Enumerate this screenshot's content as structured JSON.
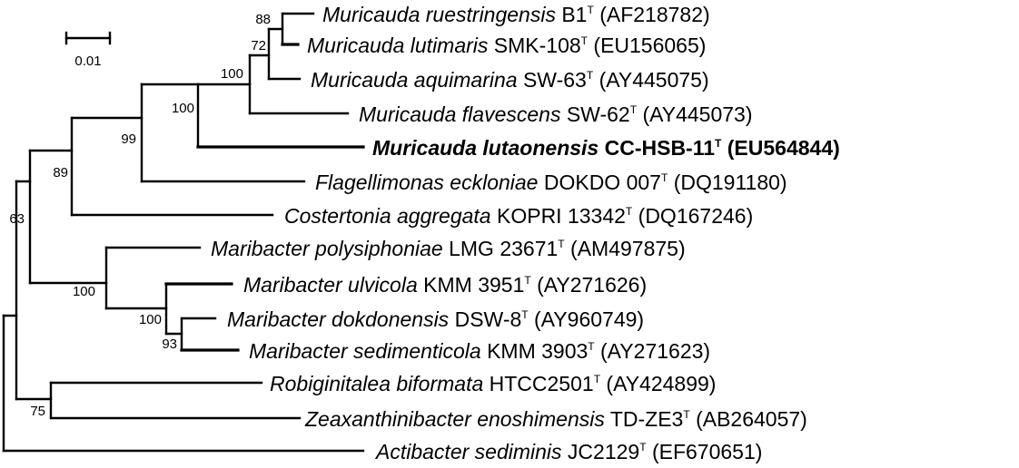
{
  "scale_bar": {
    "label": "0.01"
  },
  "taxa": [
    {
      "genus_species": "Muricauda ruestringensis",
      "strain": "B1",
      "type": "T",
      "accession": "(AF218782)",
      "bold": false
    },
    {
      "genus_species": "Muricauda lutimaris",
      "strain": "SMK-108",
      "type": "T",
      "accession": "(EU156065)",
      "bold": false
    },
    {
      "genus_species": "Muricauda aquimarina",
      "strain": "SW-63",
      "type": "T",
      "accession": "(AY445075)",
      "bold": false
    },
    {
      "genus_species": "Muricauda flavescens",
      "strain": "SW-62",
      "type": "T",
      "accession": "(AY445073)",
      "bold": false
    },
    {
      "genus_species": "Muricauda lutaonensis",
      "strain": "CC-HSB-11",
      "type": "T",
      "accession": "(EU564844)",
      "bold": true
    },
    {
      "genus_species": "Flagellimonas eckloniae",
      "strain": "DOKDO 007",
      "type": "T",
      "accession": "(DQ191180)",
      "bold": false
    },
    {
      "genus_species": "Costertonia aggregata",
      "strain": "KOPRI 13342",
      "type": "T",
      "accession": "(DQ167246)",
      "bold": false
    },
    {
      "genus_species": "Maribacter polysiphoniae",
      "strain": "LMG 23671",
      "type": "T",
      "accession": "(AM497875)",
      "bold": false
    },
    {
      "genus_species": "Maribacter ulvicola",
      "strain": "KMM 3951",
      "type": "T",
      "accession": "(AY271626)",
      "bold": false
    },
    {
      "genus_species": "Maribacter dokdonensis",
      "strain": "DSW-8",
      "type": "T",
      "accession": "(AY960749)",
      "bold": false
    },
    {
      "genus_species": "Maribacter sedimenticola",
      "strain": "KMM 3903",
      "type": "T",
      "accession": "(AY271623)",
      "bold": false
    },
    {
      "genus_species": "Robiginitalea biformata",
      "strain": "HTCC2501",
      "type": "T",
      "accession": "(AY424899)",
      "bold": false
    },
    {
      "genus_species": "Zeaxanthinibacter enoshimensis",
      "strain": "TD-ZE3",
      "type": "T",
      "accession": "(AB264057)",
      "bold": false
    },
    {
      "genus_species": "Actibacter sediminis",
      "strain": "JC2129",
      "type": "T",
      "accession": "(EF670651)",
      "bold": false
    }
  ],
  "bootstrap": [
    "88",
    "72",
    "100",
    "100",
    "99",
    "89",
    "63",
    "100",
    "100",
    "93",
    "75"
  ]
}
